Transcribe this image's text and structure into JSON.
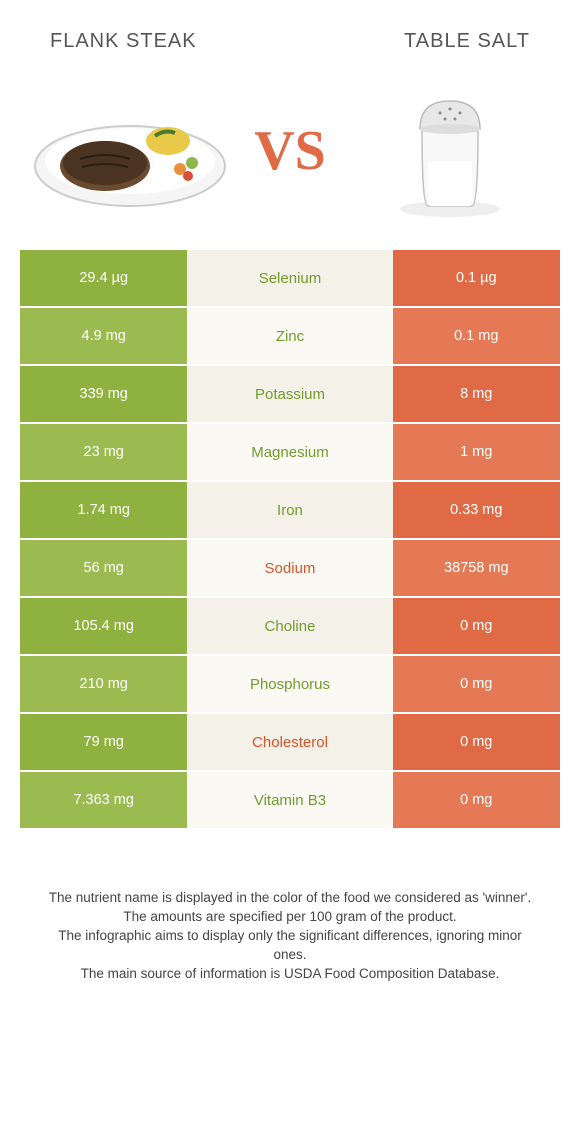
{
  "colors": {
    "left_bg": "#8eb13f",
    "left_bg_alt": "#9bbb50",
    "mid_bg": "#f4f1e9",
    "mid_bg_alt": "#faf9f4",
    "right_bg": "#e06a45",
    "right_bg_alt": "#e57955",
    "winner_left": "#739b2e",
    "winner_right": "#d7532a"
  },
  "header": {
    "left_title": "FLANK STEAK",
    "right_title": "TABLE SALT"
  },
  "vs_label": "VS",
  "rows": [
    {
      "nutrient": "Selenium",
      "left": "29.4 µg",
      "right": "0.1 µg",
      "winner": "left"
    },
    {
      "nutrient": "Zinc",
      "left": "4.9 mg",
      "right": "0.1 mg",
      "winner": "left"
    },
    {
      "nutrient": "Potassium",
      "left": "339 mg",
      "right": "8 mg",
      "winner": "left"
    },
    {
      "nutrient": "Magnesium",
      "left": "23 mg",
      "right": "1 mg",
      "winner": "left"
    },
    {
      "nutrient": "Iron",
      "left": "1.74 mg",
      "right": "0.33 mg",
      "winner": "left"
    },
    {
      "nutrient": "Sodium",
      "left": "56 mg",
      "right": "38758 mg",
      "winner": "right"
    },
    {
      "nutrient": "Choline",
      "left": "105.4 mg",
      "right": "0 mg",
      "winner": "left"
    },
    {
      "nutrient": "Phosphorus",
      "left": "210 mg",
      "right": "0 mg",
      "winner": "left"
    },
    {
      "nutrient": "Cholesterol",
      "left": "79 mg",
      "right": "0 mg",
      "winner": "right"
    },
    {
      "nutrient": "Vitamin B3",
      "left": "7.363 mg",
      "right": "0 mg",
      "winner": "left"
    }
  ],
  "footer": {
    "line1": "The nutrient name is displayed in the color of the food we considered as 'winner'.",
    "line2": "The amounts are specified per 100 gram of the product.",
    "line3": "The infographic aims to display only the significant differences, ignoring minor ones.",
    "line4": "The main source of information is USDA Food Composition Database."
  }
}
